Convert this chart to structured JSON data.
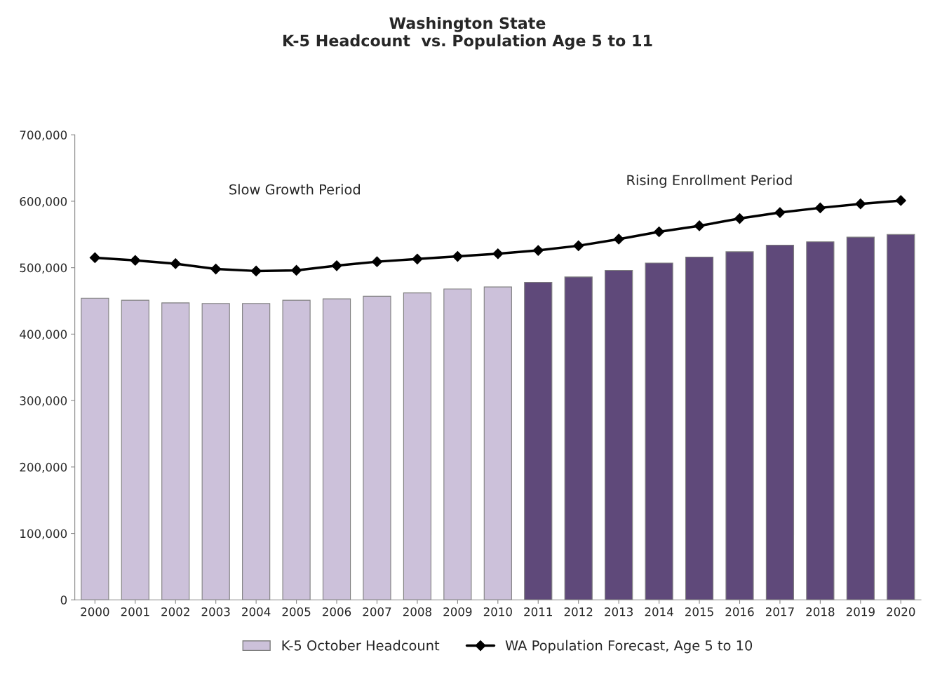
{
  "chart_data": {
    "type": "bar",
    "title": "Washington State\nK-5 Headcount  vs. Population Age 5 to 11",
    "categories": [
      "2000",
      "2001",
      "2002",
      "2003",
      "2004",
      "2005",
      "2006",
      "2007",
      "2008",
      "2009",
      "2010",
      "2011",
      "2012",
      "2013",
      "2014",
      "2015",
      "2016",
      "2017",
      "2018",
      "2019",
      "2020"
    ],
    "series": [
      {
        "name": "K-5 October Headcount",
        "color": "#ccc1da",
        "colors": [
          "#ccc1da",
          "#ccc1da",
          "#ccc1da",
          "#ccc1da",
          "#ccc1da",
          "#ccc1da",
          "#ccc1da",
          "#ccc1da",
          "#ccc1da",
          "#ccc1da",
          "#ccc1da",
          "#5f497a",
          "#5f497a",
          "#5f497a",
          "#5f497a",
          "#5f497a",
          "#5f497a",
          "#5f497a",
          "#5f497a",
          "#5f497a",
          "#5f497a"
        ],
        "values": [
          454000,
          451000,
          447000,
          446000,
          446000,
          451000,
          453000,
          457000,
          462000,
          468000,
          471000,
          478000,
          486000,
          496000,
          507000,
          516000,
          524000,
          534000,
          539000,
          546000,
          550000
        ]
      },
      {
        "name": "WA Population Forecast, Age 5 to 10",
        "type": "line",
        "color": "#000000",
        "marker": "diamond",
        "values": [
          515000,
          511000,
          506000,
          498000,
          495000,
          496000,
          503000,
          509000,
          513000,
          517000,
          521000,
          526000,
          533000,
          543000,
          554000,
          563000,
          574000,
          583000,
          590000,
          596000,
          601000
        ]
      }
    ],
    "annotations": [
      "Slow Growth Period",
      "Rising Enrollment Period"
    ],
    "ylim": [
      0,
      700000
    ],
    "yticks": [
      {
        "value": 0,
        "label": "0"
      },
      {
        "value": 100000,
        "label": "100,000"
      },
      {
        "value": 200000,
        "label": "200,000"
      },
      {
        "value": 300000,
        "label": "300,000"
      },
      {
        "value": 400000,
        "label": "400,000"
      },
      {
        "value": 500000,
        "label": "500,000"
      },
      {
        "value": 600000,
        "label": "600,000"
      },
      {
        "value": 700000,
        "label": "700,000"
      }
    ],
    "grid": false,
    "legend": "bottom"
  }
}
